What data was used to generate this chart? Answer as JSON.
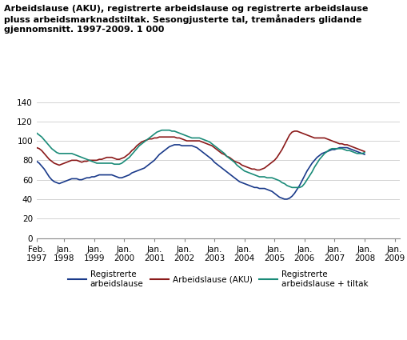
{
  "title": "Arbeidslause (AKU), registrerte arbeidslause og registrerte arbeidslause\npluss arbeidsmarknadstiltak. Sesongjusterte tal, tremånaders glidande\ngjennomsnitt. 1997-2009. 1 000",
  "ylim": [
    0,
    140
  ],
  "yticks": [
    0,
    20,
    40,
    60,
    80,
    100,
    120,
    140
  ],
  "xlabel_ticks": [
    "Feb.\n1997",
    "Jan.\n1998",
    "Jan.\n1999",
    "Jan.\n2000",
    "Jan.\n2001",
    "Jan.\n2002",
    "Jan.\n2003",
    "Jan.\n2004",
    "Jan.\n2005",
    "Jan.\n2006",
    "Jan.\n2007",
    "Jan.\n2008",
    "Jan.\n2009"
  ],
  "x_tick_pos": [
    0,
    11,
    23,
    35,
    47,
    59,
    71,
    83,
    95,
    107,
    119,
    131,
    143
  ],
  "xlim": [
    0,
    145
  ],
  "colors": {
    "registrerte": "#1a3a8a",
    "aku": "#8b1a1a",
    "tiltak": "#1a8b78"
  },
  "legend_labels": [
    "Registrerte\narbeidslause",
    "Arbeidslause (AKU)",
    "Registrerte\narbeidslause + tiltak"
  ],
  "registrerte": [
    79,
    77,
    74,
    71,
    67,
    63,
    60,
    58,
    57,
    56,
    57,
    58,
    59,
    60,
    61,
    61,
    61,
    60,
    60,
    61,
    62,
    62,
    63,
    63,
    64,
    65,
    65,
    65,
    65,
    65,
    65,
    64,
    63,
    62,
    62,
    63,
    64,
    65,
    67,
    68,
    69,
    70,
    71,
    72,
    74,
    76,
    78,
    80,
    83,
    86,
    88,
    90,
    92,
    94,
    95,
    96,
    96,
    96,
    95,
    95,
    95,
    95,
    95,
    94,
    93,
    91,
    89,
    87,
    85,
    83,
    81,
    78,
    76,
    74,
    72,
    70,
    68,
    66,
    64,
    62,
    60,
    58,
    57,
    56,
    55,
    54,
    53,
    52,
    52,
    51,
    51,
    51,
    50,
    49,
    48,
    46,
    44,
    42,
    41,
    40,
    40,
    41,
    43,
    46,
    50,
    54,
    59,
    64,
    69,
    73,
    77,
    80,
    83,
    85,
    87,
    88,
    89,
    90,
    91,
    91,
    92,
    93,
    93,
    93,
    93,
    92,
    91,
    90,
    89,
    88,
    87,
    86
  ],
  "aku": [
    93,
    92,
    90,
    87,
    84,
    81,
    79,
    77,
    76,
    75,
    76,
    77,
    78,
    79,
    80,
    80,
    80,
    79,
    78,
    79,
    79,
    80,
    80,
    80,
    80,
    81,
    81,
    82,
    83,
    83,
    83,
    82,
    81,
    81,
    82,
    83,
    85,
    87,
    90,
    92,
    95,
    97,
    99,
    100,
    101,
    102,
    102,
    103,
    103,
    104,
    104,
    104,
    104,
    104,
    104,
    104,
    103,
    103,
    102,
    101,
    100,
    100,
    100,
    100,
    100,
    100,
    99,
    98,
    97,
    96,
    95,
    93,
    91,
    89,
    87,
    86,
    84,
    83,
    81,
    79,
    78,
    77,
    75,
    74,
    73,
    72,
    71,
    71,
    70,
    70,
    71,
    72,
    74,
    76,
    78,
    80,
    83,
    87,
    91,
    96,
    101,
    106,
    109,
    110,
    110,
    109,
    108,
    107,
    106,
    105,
    104,
    103,
    103,
    103,
    103,
    103,
    102,
    101,
    100,
    99,
    98,
    97,
    97,
    96,
    96,
    95,
    94,
    93,
    92,
    91,
    90,
    89
  ],
  "tiltak": [
    108,
    106,
    104,
    101,
    98,
    95,
    92,
    90,
    88,
    87,
    87,
    87,
    87,
    87,
    87,
    86,
    85,
    84,
    83,
    82,
    81,
    80,
    79,
    78,
    77,
    77,
    77,
    77,
    77,
    77,
    77,
    76,
    76,
    76,
    77,
    79,
    81,
    83,
    86,
    89,
    92,
    95,
    97,
    99,
    101,
    103,
    105,
    107,
    109,
    110,
    111,
    111,
    111,
    111,
    110,
    110,
    109,
    108,
    107,
    106,
    105,
    104,
    103,
    103,
    103,
    103,
    102,
    101,
    100,
    99,
    97,
    95,
    93,
    91,
    89,
    87,
    84,
    82,
    80,
    78,
    75,
    73,
    71,
    69,
    68,
    67,
    66,
    65,
    64,
    63,
    63,
    63,
    62,
    62,
    62,
    61,
    60,
    59,
    57,
    56,
    54,
    53,
    52,
    52,
    52,
    52,
    53,
    56,
    60,
    64,
    68,
    73,
    77,
    81,
    84,
    87,
    89,
    91,
    92,
    92,
    92,
    92,
    92,
    91,
    90,
    90,
    89,
    88,
    87,
    87,
    87,
    88
  ],
  "background_color": "#ffffff",
  "grid_color": "#cccccc",
  "title_fontsize": 8.0,
  "tick_fontsize": 7.5
}
